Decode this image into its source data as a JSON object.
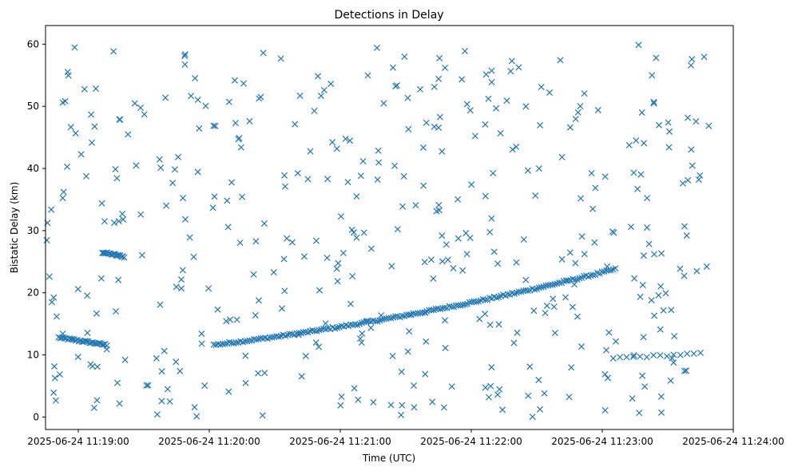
{
  "chart_data": {
    "type": "scatter",
    "title": "Detections in Delay",
    "xlabel": "Time (UTC)",
    "ylabel": "Bistatic Delay (km)",
    "marker": "x",
    "color": "#1f77b4",
    "grid": false,
    "xlim_seconds_after_11_18_45": [
      0,
      315
    ],
    "ylim": [
      -2,
      63
    ],
    "x_ticks": [
      {
        "t": 15,
        "label": "2025-06-24 11:19:00"
      },
      {
        "t": 75,
        "label": "2025-06-24 11:20:00"
      },
      {
        "t": 135,
        "label": "2025-06-24 11:21:00"
      },
      {
        "t": 195,
        "label": "2025-06-24 11:22:00"
      },
      {
        "t": 255,
        "label": "2025-06-24 11:23:00"
      },
      {
        "t": 315,
        "label": "2025-06-24 11:24:00"
      }
    ],
    "y_ticks": [
      0,
      10,
      20,
      30,
      40,
      50,
      60
    ],
    "tracks": [
      {
        "name": "track-lower",
        "t_start": 6,
        "t_end": 28,
        "y_start": 12.8,
        "y_end": 11.6,
        "count": 32,
        "curve": 0
      },
      {
        "name": "track-upper",
        "t_start": 26,
        "t_end": 36,
        "y_start": 26.5,
        "y_end": 25.8,
        "count": 18,
        "curve": 0
      },
      {
        "name": "track-main",
        "t_start": 77,
        "t_end": 261,
        "y_start": 11.6,
        "y_end": 23.8,
        "count": 180,
        "curve": 0.35
      },
      {
        "name": "track-09",
        "t_start": 260,
        "t_end": 300,
        "y_start": 9.5,
        "y_end": 10.2,
        "count": 14,
        "curve": 0
      }
    ],
    "noise": {
      "count": 430,
      "t_range": [
        0,
        305
      ],
      "y_range": [
        0,
        60
      ],
      "seed": 12345
    }
  }
}
